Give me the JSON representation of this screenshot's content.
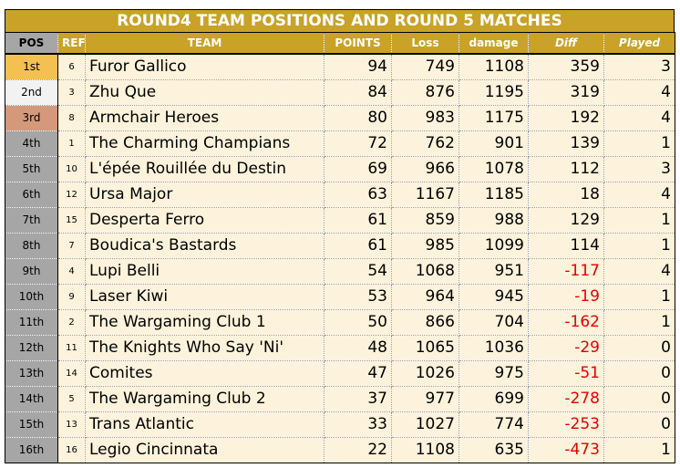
{
  "title": "ROUND4 TEAM POSITIONS AND ROUND 5 MATCHES",
  "headers": [
    "POS",
    "REF",
    "TEAM",
    "POINTS",
    "Loss",
    "damage",
    "Diff",
    "Played"
  ],
  "rows": [
    {
      "pos": "1st",
      "ref": "6",
      "team": "Furor Gallico",
      "points": "94",
      "loss": "749",
      "damage": "1108",
      "diff": "359",
      "played": "3"
    },
    {
      "pos": "2nd",
      "ref": "3",
      "team": "Zhu Que",
      "points": "84",
      "loss": "876",
      "damage": "1195",
      "diff": "319",
      "played": "4"
    },
    {
      "pos": "3rd",
      "ref": "8",
      "team": "Armchair Heroes",
      "points": "80",
      "loss": "983",
      "damage": "1175",
      "diff": "192",
      "played": "4"
    },
    {
      "pos": "4th",
      "ref": "1",
      "team": "The Charming Champians",
      "points": "72",
      "loss": "762",
      "damage": "901",
      "diff": "139",
      "played": "1"
    },
    {
      "pos": "5th",
      "ref": "10",
      "team": "L'épée Rouillée du Destin",
      "points": "69",
      "loss": "966",
      "damage": "1078",
      "diff": "112",
      "played": "3"
    },
    {
      "pos": "6th",
      "ref": "12",
      "team": "Ursa Major",
      "points": "63",
      "loss": "1167",
      "damage": "1185",
      "diff": "18",
      "played": "4"
    },
    {
      "pos": "7th",
      "ref": "15",
      "team": "Desperta Ferro",
      "points": "61",
      "loss": "859",
      "damage": "988",
      "diff": "129",
      "played": "1"
    },
    {
      "pos": "8th",
      "ref": "7",
      "team": "Boudica's Bastards",
      "points": "61",
      "loss": "985",
      "damage": "1099",
      "diff": "114",
      "played": "1"
    },
    {
      "pos": "9th",
      "ref": "4",
      "team": "Lupi Belli",
      "points": "54",
      "loss": "1068",
      "damage": "951",
      "diff": "-117",
      "played": "4"
    },
    {
      "pos": "10th",
      "ref": "9",
      "team": "Laser Kiwi",
      "points": "53",
      "loss": "964",
      "damage": "945",
      "diff": "-19",
      "played": "1"
    },
    {
      "pos": "11th",
      "ref": "2",
      "team": "The Wargaming Club 1",
      "points": "50",
      "loss": "866",
      "damage": "704",
      "diff": "-162",
      "played": "1"
    },
    {
      "pos": "12th",
      "ref": "11",
      "team": "The Knights Who Say 'Ni'",
      "points": "48",
      "loss": "1065",
      "damage": "1036",
      "diff": "-29",
      "played": "0"
    },
    {
      "pos": "13th",
      "ref": "14",
      "team": "Comites",
      "points": "47",
      "loss": "1026",
      "damage": "975",
      "diff": "-51",
      "played": "0"
    },
    {
      "pos": "14th",
      "ref": "5",
      "team": "The Wargaming Club 2",
      "points": "37",
      "loss": "977",
      "damage": "699",
      "diff": "-278",
      "played": "0"
    },
    {
      "pos": "15th",
      "ref": "13",
      "team": "Trans Atlantic",
      "points": "33",
      "loss": "1027",
      "damage": "774",
      "diff": "-253",
      "played": "0"
    },
    {
      "pos": "16th",
      "ref": "16",
      "team": "Legio Cincinnata",
      "points": "22",
      "loss": "1108",
      "damage": "635",
      "diff": "-473",
      "played": "1"
    }
  ],
  "colors": {
    "header_gold": "#c9a227",
    "row_bg": "#fdf3dc",
    "pos_grey": "#a6a6a6",
    "first_gold": "#f5c052",
    "second_silver": "#f2f2f2",
    "third_bronze": "#d4997a",
    "negative_red": "#e60000"
  }
}
